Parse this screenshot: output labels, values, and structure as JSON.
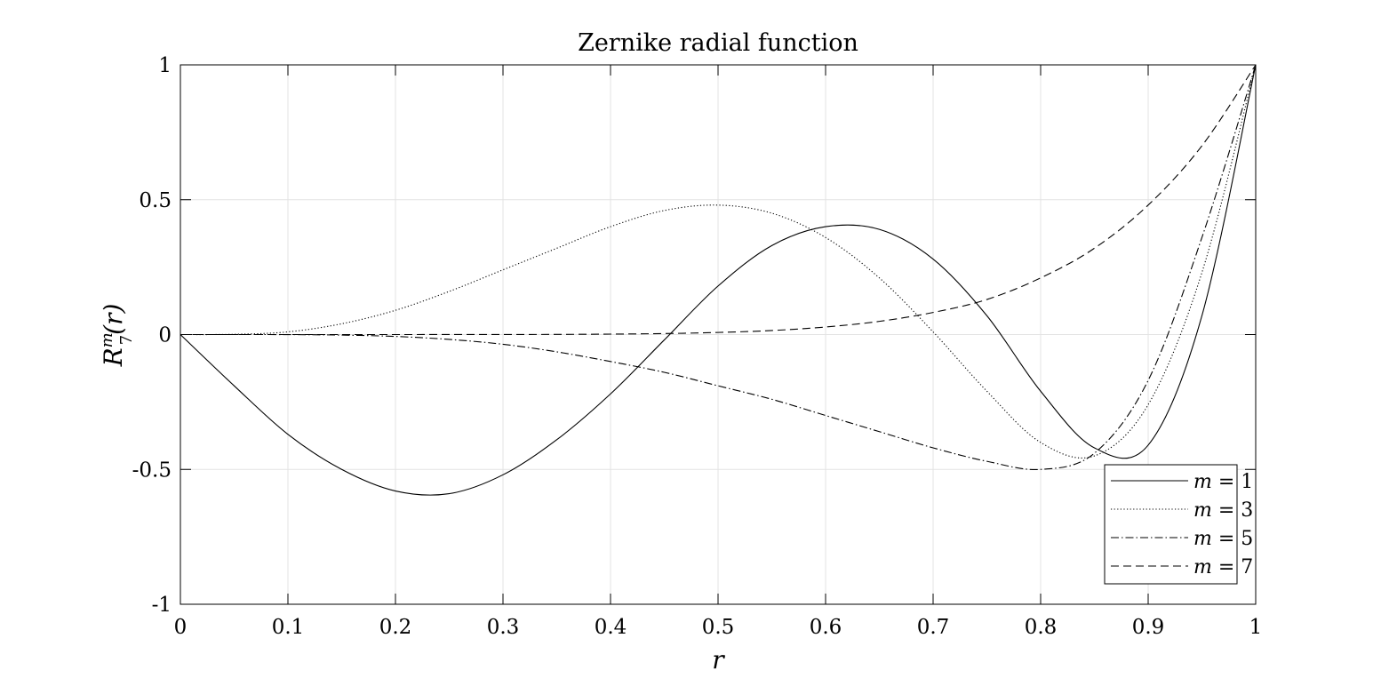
{
  "chart_data": {
    "type": "line",
    "title": "Zernike radial function",
    "xlabel": "r",
    "ylabel": "R_7^m(r)",
    "ylabel_parts": {
      "base": "R",
      "sup": "m",
      "sub": "7",
      "arg": "(r)"
    },
    "xlim": [
      0,
      1
    ],
    "ylim": [
      -1,
      1
    ],
    "xticks": [
      0,
      0.1,
      0.2,
      0.3,
      0.4,
      0.5,
      0.6,
      0.7,
      0.8,
      0.9,
      1
    ],
    "xtick_labels": [
      "0",
      "0.1",
      "0.2",
      "0.3",
      "0.4",
      "0.5",
      "0.6",
      "0.7",
      "0.8",
      "0.9",
      "1"
    ],
    "yticks": [
      -1,
      -0.5,
      0,
      0.5,
      1
    ],
    "ytick_labels": [
      "-1",
      "-0.5",
      "0",
      "0.5",
      "1"
    ],
    "grid": true,
    "legend_position": "bottom-right",
    "x": [
      0,
      0.05,
      0.1,
      0.15,
      0.2,
      0.25,
      0.3,
      0.35,
      0.4,
      0.45,
      0.5,
      0.55,
      0.6,
      0.65,
      0.7,
      0.75,
      0.8,
      0.85,
      0.9,
      0.95,
      1
    ],
    "series": [
      {
        "legend_var": "m",
        "legend_eq": "= 1",
        "dash": "solid",
        "values": [
          0,
          -0.19,
          -0.37,
          -0.5,
          -0.58,
          -0.59,
          -0.52,
          -0.39,
          -0.22,
          -0.02,
          0.18,
          0.33,
          0.4,
          0.39,
          0.28,
          0.07,
          -0.21,
          -0.42,
          -0.41,
          0.07,
          1
        ]
      },
      {
        "legend_var": "m",
        "legend_eq": "= 3",
        "dash": "dotted",
        "values": [
          0,
          0.001,
          0.01,
          0.04,
          0.09,
          0.16,
          0.24,
          0.32,
          0.4,
          0.46,
          0.48,
          0.45,
          0.36,
          0.21,
          0.01,
          -0.21,
          -0.4,
          -0.45,
          -0.26,
          0.23,
          1
        ]
      },
      {
        "legend_var": "m",
        "legend_eq": "= 5",
        "dash": "dashdot",
        "values": [
          0,
          0,
          -0.0002,
          -0.002,
          -0.007,
          -0.018,
          -0.036,
          -0.064,
          -0.1,
          -0.14,
          -0.19,
          -0.24,
          -0.3,
          -0.36,
          -0.42,
          -0.47,
          -0.5,
          -0.44,
          -0.17,
          0.36,
          1
        ]
      },
      {
        "legend_var": "m",
        "legend_eq": "= 7",
        "dash": "dashed",
        "values": [
          0,
          0,
          0,
          0,
          0,
          0.0001,
          0.0002,
          0.0006,
          0.0016,
          0.0037,
          0.0078,
          0.015,
          0.028,
          0.049,
          0.082,
          0.13,
          0.21,
          0.32,
          0.48,
          0.7,
          1
        ]
      }
    ]
  }
}
